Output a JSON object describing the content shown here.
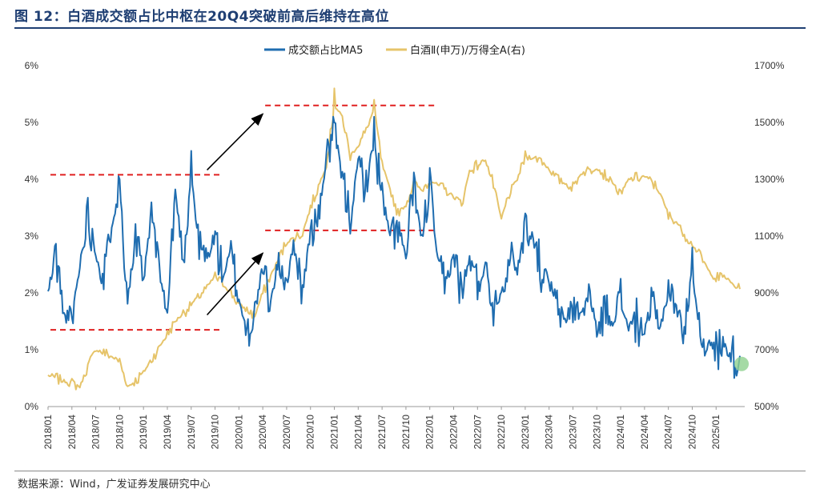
{
  "figure": {
    "title": "图 12：白酒成交额占比中枢在20Q4突破前高后维持在高位",
    "source": "数据来源：Wind，广发证券发展研究中心"
  },
  "colors": {
    "title": "#1f3f73",
    "series_left": "#1f6db0",
    "series_right": "#e6c46a",
    "reference": "#e02020",
    "arrow": "#000000",
    "endpoint_marker": "#8fd18f"
  },
  "chart_data": {
    "type": "line",
    "title": "",
    "xlabel": "",
    "ylabel": "",
    "x_range": [
      "2018-01",
      "2025-04"
    ],
    "x_ticks": [
      "2018/01",
      "2018/04",
      "2018/07",
      "2018/10",
      "2019/01",
      "2019/04",
      "2019/07",
      "2019/10",
      "2020/01",
      "2020/04",
      "2020/07",
      "2020/10",
      "2021/01",
      "2021/04",
      "2021/07",
      "2021/10",
      "2022/01",
      "2022/04",
      "2022/07",
      "2022/10",
      "2023/01",
      "2023/04",
      "2023/07",
      "2023/10",
      "2024/01",
      "2024/04",
      "2024/07",
      "2024/10",
      "2025/01"
    ],
    "y_left": {
      "range": [
        0,
        6
      ],
      "ticks": [
        "0%",
        "1%",
        "2%",
        "3%",
        "4%",
        "5%",
        "6%"
      ]
    },
    "y_right": {
      "range": [
        500,
        1700
      ],
      "ticks": [
        "500%",
        "700%",
        "900%",
        "1100%",
        "1300%",
        "1500%",
        "1700%"
      ]
    },
    "legend_position": "top-center",
    "grid": false,
    "series": [
      {
        "name": "成交额占比MA5",
        "axis": "left",
        "anchors": [
          [
            "2018-01",
            2.0
          ],
          [
            "2018-02",
            2.7
          ],
          [
            "2018-03",
            1.6
          ],
          [
            "2018-04",
            1.5
          ],
          [
            "2018-05",
            2.5
          ],
          [
            "2018-06",
            3.4
          ],
          [
            "2018-07",
            2.7
          ],
          [
            "2018-08",
            2.2
          ],
          [
            "2018-09",
            3.2
          ],
          [
            "2018-10",
            3.9
          ],
          [
            "2018-11",
            1.9
          ],
          [
            "2018-12",
            2.9
          ],
          [
            "2019-01",
            2.2
          ],
          [
            "2019-02",
            3.4
          ],
          [
            "2019-03",
            2.4
          ],
          [
            "2019-04",
            1.6
          ],
          [
            "2019-05",
            3.8
          ],
          [
            "2019-06",
            2.6
          ],
          [
            "2019-07",
            4.1
          ],
          [
            "2019-08",
            2.8
          ],
          [
            "2019-09",
            2.6
          ],
          [
            "2019-10",
            3.0
          ],
          [
            "2019-11",
            2.3
          ],
          [
            "2019-12",
            2.7
          ],
          [
            "2020-01",
            1.9
          ],
          [
            "2020-02",
            1.3
          ],
          [
            "2020-03",
            1.7
          ],
          [
            "2020-04",
            2.4
          ],
          [
            "2020-05",
            1.8
          ],
          [
            "2020-06",
            2.6
          ],
          [
            "2020-07",
            2.2
          ],
          [
            "2020-08",
            2.9
          ],
          [
            "2020-09",
            2.0
          ],
          [
            "2020-10",
            3.1
          ],
          [
            "2020-11",
            3.3
          ],
          [
            "2020-12",
            4.4
          ],
          [
            "2021-01",
            4.9
          ],
          [
            "2021-02",
            4.0
          ],
          [
            "2021-03",
            3.3
          ],
          [
            "2021-04",
            4.3
          ],
          [
            "2021-05",
            3.9
          ],
          [
            "2021-06",
            4.7
          ],
          [
            "2021-07",
            3.7
          ],
          [
            "2021-08",
            3.0
          ],
          [
            "2021-09",
            3.2
          ],
          [
            "2021-10",
            2.6
          ],
          [
            "2021-11",
            3.9
          ],
          [
            "2021-12",
            2.9
          ],
          [
            "2022-01",
            4.0
          ],
          [
            "2022-02",
            2.5
          ],
          [
            "2022-03",
            2.1
          ],
          [
            "2022-04",
            2.7
          ],
          [
            "2022-05",
            2.0
          ],
          [
            "2022-06",
            2.6
          ],
          [
            "2022-07",
            2.1
          ],
          [
            "2022-08",
            2.5
          ],
          [
            "2022-09",
            1.8
          ],
          [
            "2022-10",
            2.0
          ],
          [
            "2022-11",
            2.7
          ],
          [
            "2022-12",
            2.4
          ],
          [
            "2023-01",
            3.1
          ],
          [
            "2023-02",
            3.0
          ],
          [
            "2023-03",
            2.4
          ],
          [
            "2023-04",
            2.2
          ],
          [
            "2023-05",
            1.7
          ],
          [
            "2023-06",
            1.5
          ],
          [
            "2023-07",
            1.8
          ],
          [
            "2023-08",
            1.6
          ],
          [
            "2023-09",
            2.0
          ],
          [
            "2023-10",
            1.3
          ],
          [
            "2023-11",
            1.7
          ],
          [
            "2023-12",
            1.5
          ],
          [
            "2024-01",
            1.9
          ],
          [
            "2024-02",
            1.4
          ],
          [
            "2024-03",
            1.5
          ],
          [
            "2024-04",
            1.3
          ],
          [
            "2024-05",
            1.8
          ],
          [
            "2024-06",
            1.4
          ],
          [
            "2024-07",
            2.1
          ],
          [
            "2024-08",
            1.7
          ],
          [
            "2024-09",
            1.4
          ],
          [
            "2024-10",
            2.4
          ],
          [
            "2024-11",
            1.3
          ],
          [
            "2024-12",
            1.1
          ],
          [
            "2025-01",
            1.0
          ],
          [
            "2025-02",
            1.1
          ],
          [
            "2025-03",
            0.9
          ],
          [
            "2025-04",
            0.8
          ]
        ],
        "peaks": [
          [
            "2019-07",
            4.5
          ],
          [
            "2021-01",
            5.0
          ],
          [
            "2021-06",
            5.1
          ],
          [
            "2022-01",
            4.2
          ],
          [
            "2018-10",
            4.0
          ],
          [
            "2023-01",
            3.4
          ],
          [
            "2024-10",
            2.8
          ]
        ]
      },
      {
        "name": "白酒Ⅱ(申万)/万得全A(右)",
        "axis": "right",
        "anchors": [
          [
            "2018-01",
            610
          ],
          [
            "2018-03",
            590
          ],
          [
            "2018-05",
            570
          ],
          [
            "2018-06",
            640
          ],
          [
            "2018-07",
            700
          ],
          [
            "2018-08",
            690
          ],
          [
            "2018-10",
            660
          ],
          [
            "2018-11",
            570
          ],
          [
            "2018-12",
            590
          ],
          [
            "2019-01",
            620
          ],
          [
            "2019-03",
            710
          ],
          [
            "2019-05",
            800
          ],
          [
            "2019-07",
            860
          ],
          [
            "2019-09",
            920
          ],
          [
            "2019-10",
            960
          ],
          [
            "2019-12",
            900
          ],
          [
            "2020-01",
            860
          ],
          [
            "2020-03",
            820
          ],
          [
            "2020-04",
            900
          ],
          [
            "2020-05",
            960
          ],
          [
            "2020-07",
            1080
          ],
          [
            "2020-09",
            1110
          ],
          [
            "2020-10",
            1200
          ],
          [
            "2020-12",
            1350
          ],
          [
            "2021-01",
            1560
          ],
          [
            "2021-02",
            1520
          ],
          [
            "2021-03",
            1380
          ],
          [
            "2021-04",
            1420
          ],
          [
            "2021-05",
            1470
          ],
          [
            "2021-06",
            1550
          ],
          [
            "2021-07",
            1350
          ],
          [
            "2021-09",
            1180
          ],
          [
            "2021-10",
            1210
          ],
          [
            "2021-11",
            1290
          ],
          [
            "2021-12",
            1260
          ],
          [
            "2022-01",
            1300
          ],
          [
            "2022-03",
            1260
          ],
          [
            "2022-04",
            1240
          ],
          [
            "2022-05",
            1210
          ],
          [
            "2022-06",
            1330
          ],
          [
            "2022-07",
            1350
          ],
          [
            "2022-08",
            1370
          ],
          [
            "2022-09",
            1280
          ],
          [
            "2022-10",
            1160
          ],
          [
            "2022-11",
            1250
          ],
          [
            "2022-12",
            1300
          ],
          [
            "2023-01",
            1380
          ],
          [
            "2023-03",
            1370
          ],
          [
            "2023-05",
            1300
          ],
          [
            "2023-07",
            1270
          ],
          [
            "2023-08",
            1320
          ],
          [
            "2023-10",
            1340
          ],
          [
            "2023-12",
            1290
          ],
          [
            "2024-01",
            1240
          ],
          [
            "2024-02",
            1300
          ],
          [
            "2024-04",
            1310
          ],
          [
            "2024-05",
            1290
          ],
          [
            "2024-06",
            1250
          ],
          [
            "2024-07",
            1170
          ],
          [
            "2024-08",
            1150
          ],
          [
            "2024-09",
            1110
          ],
          [
            "2024-10",
            1070
          ],
          [
            "2024-11",
            1030
          ],
          [
            "2024-12",
            980
          ],
          [
            "2025-01",
            950
          ],
          [
            "2025-02",
            960
          ],
          [
            "2025-03",
            930
          ],
          [
            "2025-04",
            920
          ]
        ],
        "peaks": [
          [
            "2021-01",
            1620
          ],
          [
            "2021-06",
            1580
          ]
        ]
      }
    ],
    "reference_lines": [
      {
        "axis": "left",
        "value": 1.35,
        "from": "2018-01",
        "to": "2019-10"
      },
      {
        "axis": "left",
        "value": 4.08,
        "from": "2018-01",
        "to": "2019-10"
      },
      {
        "axis": "left",
        "value": 3.1,
        "from": "2020-04",
        "to": "2022-01"
      },
      {
        "axis": "left",
        "value": 5.3,
        "from": "2020-04",
        "to": "2022-01"
      }
    ],
    "annotations": [
      {
        "type": "arrow",
        "from": [
          "2019-10",
          4.05
        ],
        "to": [
          "2020-04",
          5.15
        ],
        "axis": "left"
      },
      {
        "type": "arrow",
        "from": [
          "2019-10",
          1.5
        ],
        "to": [
          "2020-04",
          2.7
        ],
        "axis": "left"
      },
      {
        "type": "marker",
        "at": [
          "2025-04",
          650
        ],
        "axis": "right"
      }
    ]
  }
}
